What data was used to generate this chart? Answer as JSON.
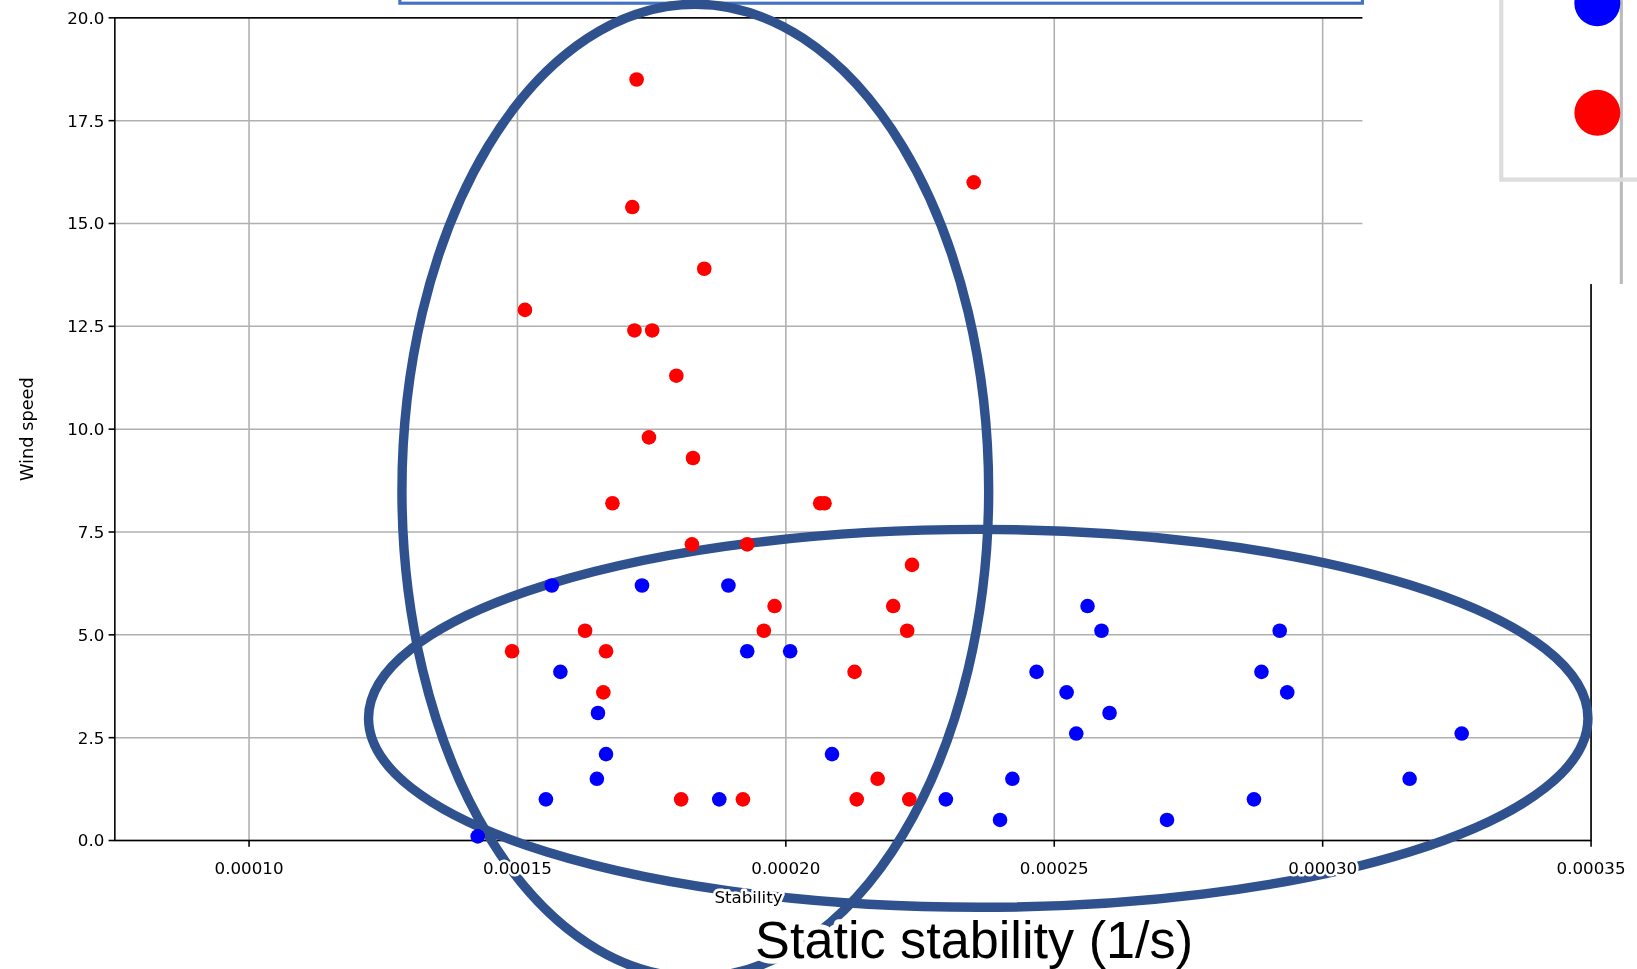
{
  "chart_data": {
    "type": "scatter",
    "xlabel": "Stability",
    "ylabel": "Wind speed",
    "annotations": [
      "Static stability (1/s)"
    ],
    "xlim": [
      7.5e-05,
      0.00035
    ],
    "xticks": [
      {
        "value": 0.0001,
        "label": "0.00010"
      },
      {
        "value": 0.00015,
        "label": "0.00015"
      },
      {
        "value": 0.0002,
        "label": "0.00020"
      },
      {
        "value": 0.00025,
        "label": "0.00025"
      },
      {
        "value": 0.0003,
        "label": "0.00030"
      },
      {
        "value": 0.00035,
        "label": "0.00035"
      }
    ],
    "ylim": [
      0,
      20
    ],
    "yticks": [
      {
        "value": 0,
        "label": "0.0"
      },
      {
        "value": 2.5,
        "label": "2.5"
      },
      {
        "value": 5,
        "label": "5.0"
      },
      {
        "value": 7.5,
        "label": "7.5"
      },
      {
        "value": 10,
        "label": "10.0"
      },
      {
        "value": 12.5,
        "label": "12.5"
      },
      {
        "value": 15,
        "label": "15.0"
      },
      {
        "value": 17.5,
        "label": "17.5"
      },
      {
        "value": 20,
        "label": "20.0"
      }
    ],
    "grid": true,
    "marker": "circle",
    "series": [
      {
        "color": "#0000ff",
        "x": [
          0.0001564,
          0.0001732,
          0.0001893,
          0.000158,
          0.0001928,
          0.0002008,
          0.000165,
          0.0001665,
          0.0002086,
          0.0001648,
          0.0001553,
          0.0001876,
          0.0002298,
          0.0002399,
          0.0002422,
          0.0002467,
          0.0002523,
          0.0002562,
          0.0002588,
          0.0002541,
          0.0002603,
          0.000271,
          0.0002872,
          0.0002886,
          0.000292,
          0.0002934,
          0.0003162,
          0.0003259,
          0.0001426
        ],
        "values": [
          6.2,
          6.2,
          6.2,
          4.1,
          4.6,
          4.6,
          3.1,
          2.1,
          2.1,
          1.5,
          1.0,
          1.0,
          1.0,
          0.5,
          1.5,
          4.1,
          3.6,
          5.7,
          5.1,
          2.6,
          3.1,
          0.5,
          1.0,
          4.1,
          5.1,
          3.6,
          1.5,
          2.6,
          0.1
        ]
      },
      {
        "color": "#ff0000",
        "x": [
          0.0001722,
          0.000235,
          0.0001714,
          0.0001848,
          0.0001514,
          0.0001718,
          0.0001751,
          0.0001796,
          0.0001745,
          0.0001827,
          0.0001677,
          0.0002064,
          0.0002072,
          0.0001825,
          0.0001928,
          0.0002235,
          0.0001979,
          0.00022,
          0.0001626,
          0.0001959,
          0.0002226,
          0.000149,
          0.0001665,
          0.0002128,
          0.000166,
          0.0002171,
          0.0001805,
          0.000192,
          0.0002132,
          0.000223
        ],
        "values": [
          18.5,
          16.0,
          15.4,
          13.9,
          12.9,
          12.4,
          12.4,
          11.3,
          9.8,
          9.3,
          8.2,
          8.2,
          8.2,
          7.2,
          7.2,
          6.7,
          5.7,
          5.7,
          5.1,
          5.1,
          5.1,
          4.6,
          4.6,
          4.1,
          3.6,
          1.5,
          1.0,
          1.0,
          1.0,
          1.0
        ]
      }
    ]
  }
}
